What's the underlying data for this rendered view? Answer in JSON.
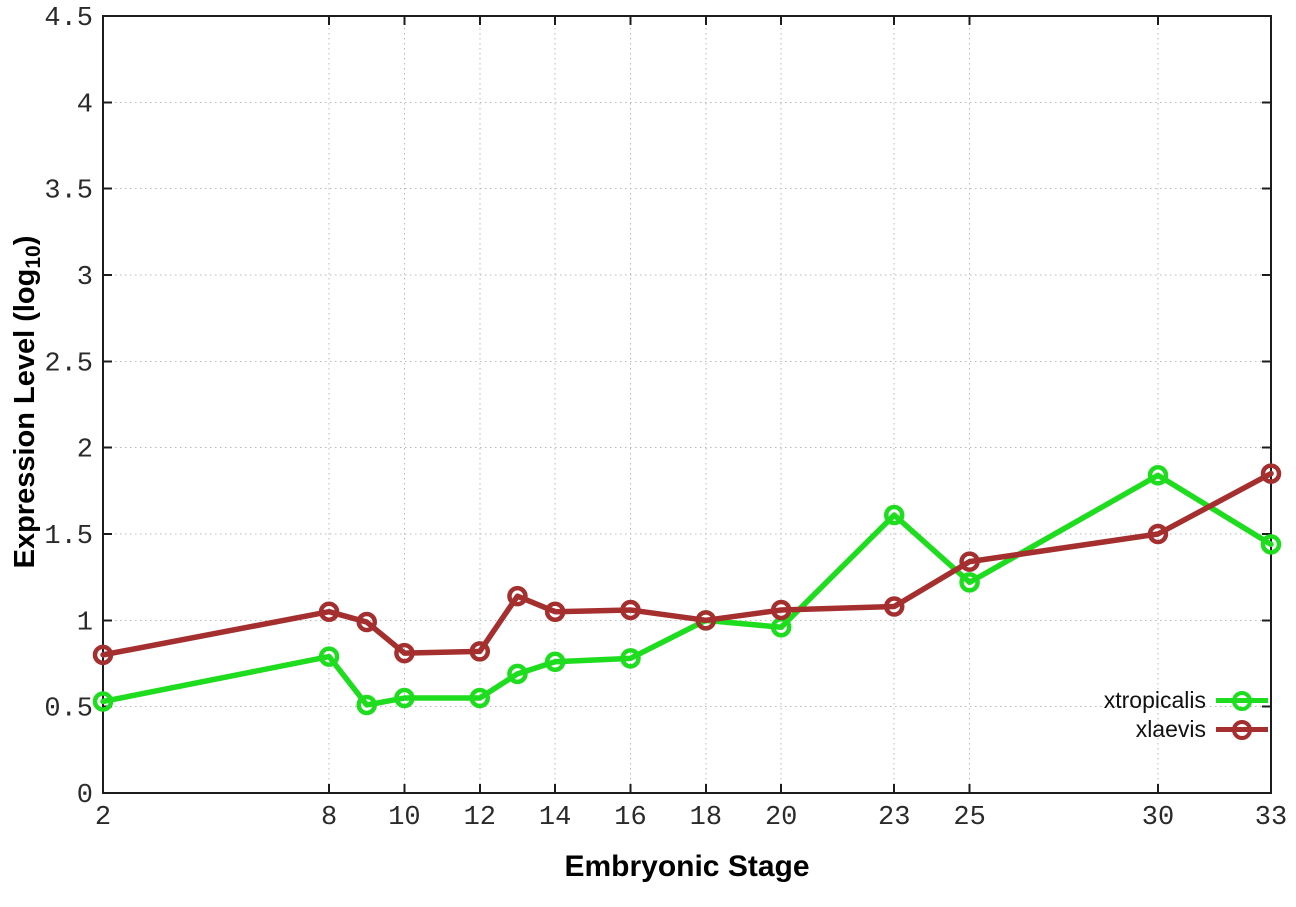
{
  "chart_data": {
    "type": "line",
    "title": "",
    "xlabel": "Embryonic Stage",
    "ylabel": "Expression Level (log10)",
    "ylabel_parts": {
      "pre": "Expression Level (log",
      "sub": "10",
      "post": ")"
    },
    "x": [
      2,
      8,
      9,
      10,
      12,
      13,
      14,
      16,
      18,
      20,
      23,
      25,
      30,
      33
    ],
    "series": [
      {
        "name": "xtropicalis",
        "color": "#1edc1e",
        "marker": "open-circle",
        "values": [
          0.53,
          0.79,
          0.51,
          0.55,
          0.55,
          0.69,
          0.76,
          0.78,
          1.0,
          0.96,
          1.61,
          1.22,
          1.84,
          1.44
        ]
      },
      {
        "name": "xlaevis",
        "color": "#a52f2f",
        "marker": "open-circle",
        "values": [
          0.8,
          1.05,
          0.99,
          0.81,
          0.82,
          1.14,
          1.05,
          1.06,
          1.0,
          1.06,
          1.08,
          1.34,
          1.5,
          1.85
        ]
      }
    ],
    "xlim": [
      2,
      33
    ],
    "ylim": [
      0,
      4.5
    ],
    "xticks": [
      2,
      8,
      10,
      12,
      14,
      16,
      18,
      20,
      23,
      25,
      30,
      33
    ],
    "yticks": [
      0,
      0.5,
      1,
      1.5,
      2,
      2.5,
      3,
      3.5,
      4,
      4.5
    ],
    "ytick_labels": [
      "0",
      "0.5",
      "1",
      "1.5",
      "2",
      "2.5",
      "3",
      "3.5",
      "4",
      "4.5"
    ],
    "grid": true,
    "grid_style": "dotted",
    "legend_position": "inside-bottom-right",
    "colors": {
      "background": "#ffffff",
      "border": "#1c1c1c",
      "grid": "#b8b8b8",
      "tick_label": "#2a2a2a"
    }
  }
}
